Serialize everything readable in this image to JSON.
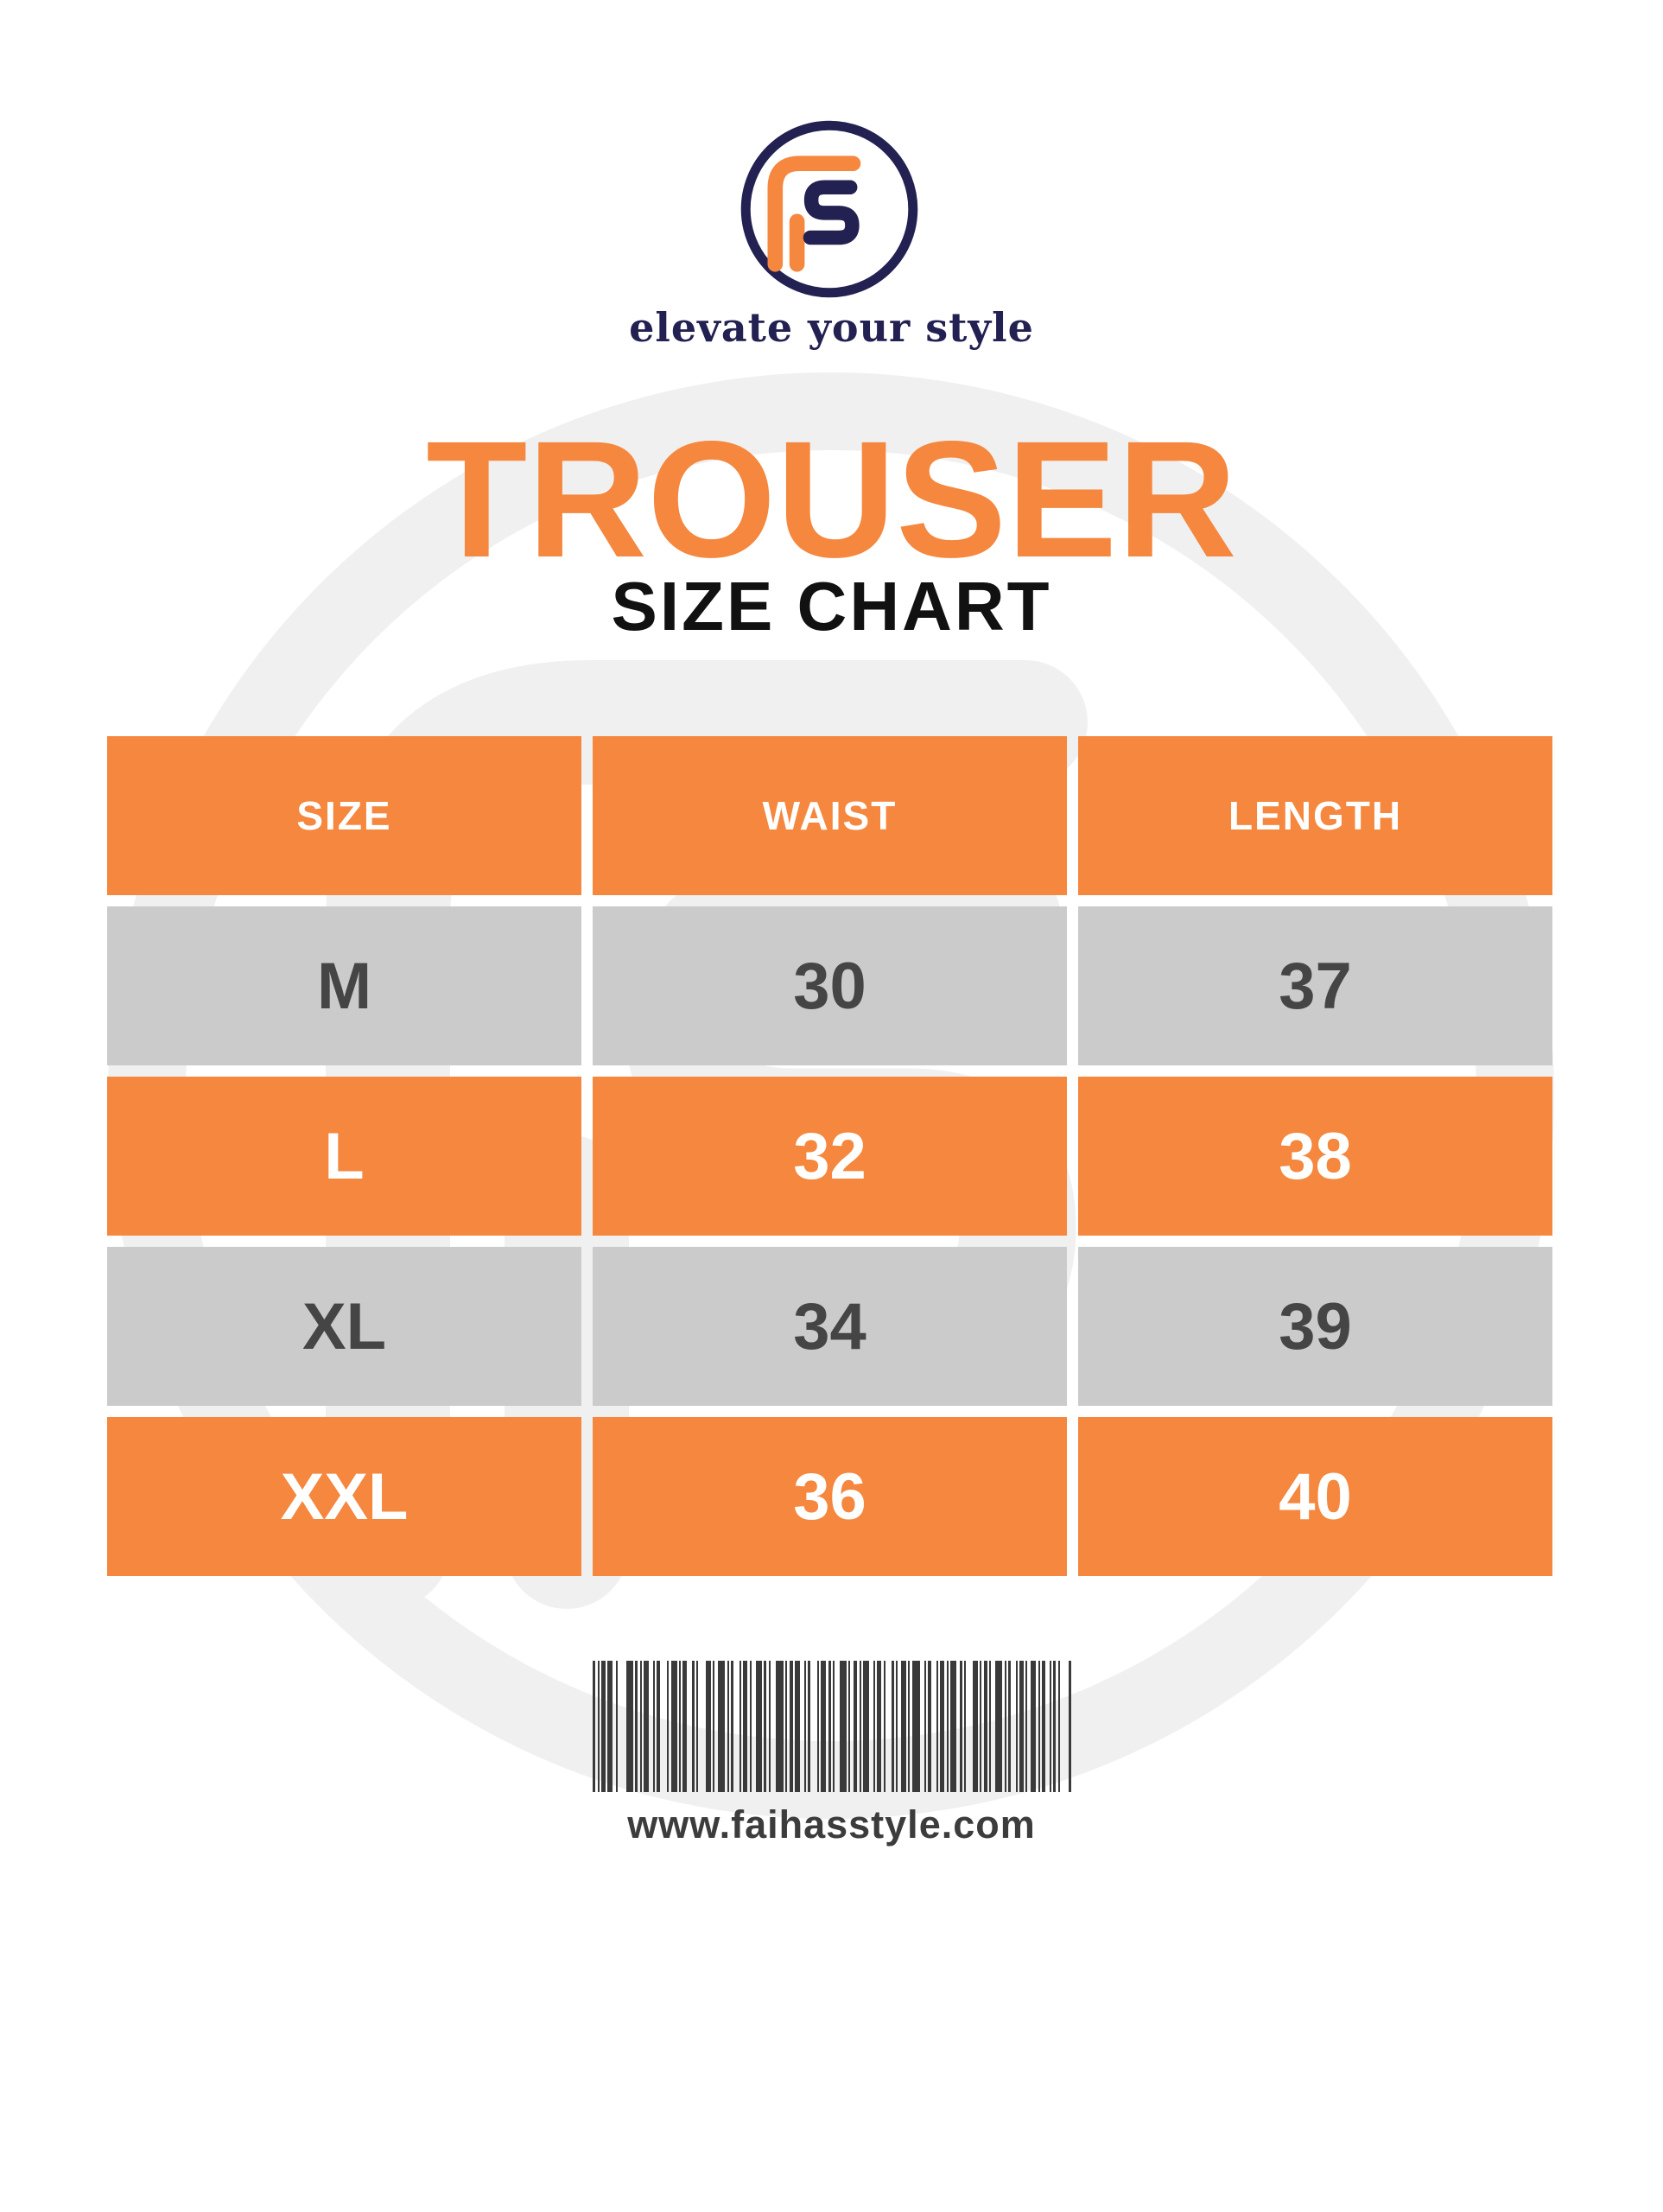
{
  "brand": {
    "monogram": "FS",
    "tagline": "elevate your style"
  },
  "title": {
    "main": "TROUSER",
    "sub": "SIZE CHART"
  },
  "table": {
    "headers": [
      "SIZE",
      "WAIST",
      "LENGTH"
    ],
    "rows": [
      {
        "size": "M",
        "waist": "30",
        "length": "37",
        "style": "gray"
      },
      {
        "size": "L",
        "waist": "32",
        "length": "38",
        "style": "orange"
      },
      {
        "size": "XL",
        "waist": "34",
        "length": "39",
        "style": "gray"
      },
      {
        "size": "XXL",
        "waist": "36",
        "length": "40",
        "style": "orange"
      }
    ]
  },
  "footer": {
    "website": "www.faihasstyle.com",
    "barcode_bars": [
      [
        3,
        3
      ],
      [
        2,
        2
      ],
      [
        5,
        2
      ],
      [
        6,
        4
      ],
      [
        2,
        10
      ],
      [
        8,
        2
      ],
      [
        3,
        3
      ],
      [
        2,
        2
      ],
      [
        6,
        5
      ],
      [
        2,
        2
      ],
      [
        4,
        8
      ],
      [
        2,
        3
      ],
      [
        7,
        2
      ],
      [
        2,
        2
      ],
      [
        5,
        6
      ],
      [
        3,
        2
      ],
      [
        2,
        9
      ],
      [
        6,
        2
      ],
      [
        2,
        4
      ],
      [
        8,
        3
      ],
      [
        2,
        2
      ],
      [
        3,
        7
      ],
      [
        2,
        2
      ],
      [
        5,
        3
      ],
      [
        2,
        5
      ],
      [
        7,
        2
      ],
      [
        3,
        3
      ],
      [
        2,
        6
      ],
      [
        9,
        2
      ],
      [
        2,
        3
      ],
      [
        4,
        2
      ],
      [
        6,
        5
      ],
      [
        2,
        2
      ],
      [
        3,
        8
      ],
      [
        2,
        2
      ],
      [
        6,
        3
      ],
      [
        3,
        2
      ],
      [
        2,
        6
      ],
      [
        8,
        2
      ],
      [
        2,
        4
      ],
      [
        4,
        3
      ],
      [
        2,
        2
      ],
      [
        7,
        5
      ],
      [
        2,
        2
      ],
      [
        5,
        3
      ],
      [
        2,
        7
      ],
      [
        3,
        2
      ],
      [
        2,
        4
      ],
      [
        6,
        2
      ],
      [
        2,
        3
      ],
      [
        9,
        5
      ],
      [
        2,
        2
      ],
      [
        4,
        6
      ],
      [
        2,
        2
      ],
      [
        5,
        3
      ],
      [
        2,
        2
      ],
      [
        7,
        4
      ],
      [
        3,
        2
      ],
      [
        2,
        8
      ],
      [
        6,
        2
      ],
      [
        2,
        3
      ],
      [
        4,
        2
      ],
      [
        2,
        5
      ],
      [
        8,
        3
      ],
      [
        2,
        2
      ],
      [
        3,
        6
      ],
      [
        2,
        2
      ],
      [
        5,
        2
      ],
      [
        2,
        4
      ],
      [
        6,
        3
      ],
      [
        2,
        2
      ],
      [
        4,
        5
      ],
      [
        2,
        2
      ],
      [
        3,
        3
      ],
      [
        2,
        10
      ],
      [
        3,
        0
      ]
    ]
  },
  "colors": {
    "orange": "#F5873E",
    "navy": "#232052",
    "row_gray": "#CBCBCB",
    "text_dark": "#454545",
    "barcode": "#3A3A3A",
    "page_bg": "#FFFFFF"
  }
}
